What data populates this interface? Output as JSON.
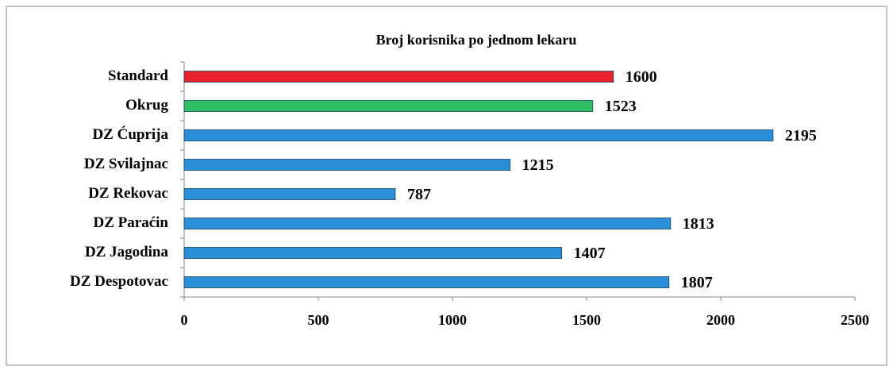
{
  "chart_data": {
    "type": "hbar",
    "title": "Broj korisnika po jednom lekaru",
    "categories": [
      "Standard",
      "Okrug",
      "DZ Ćuprija",
      "DZ Svilajnac",
      "DZ Rekovac",
      "DZ Paraćin",
      "DZ Jagodina",
      "DZ Despotovac"
    ],
    "values": [
      1600,
      1523,
      2195,
      1215,
      787,
      1813,
      1407,
      1807
    ],
    "colors": [
      "#e8222a",
      "#2fbf62",
      "#2a8fd8",
      "#2a8fd8",
      "#2a8fd8",
      "#2a8fd8",
      "#2a8fd8",
      "#2a8fd8"
    ],
    "xlim": [
      0,
      2500
    ],
    "xticks": [
      0,
      500,
      1000,
      1500,
      2000,
      2500
    ]
  }
}
